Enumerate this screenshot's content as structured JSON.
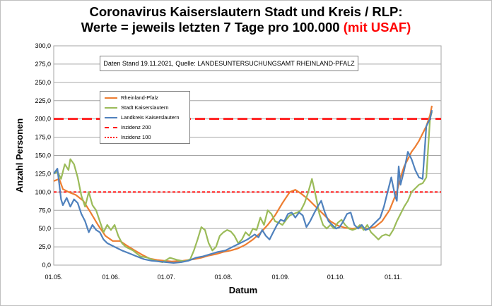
{
  "chart_data": {
    "type": "line",
    "title_line1": "Coronavirus Kaiserslautern Stadt und Kreis / RLP:",
    "title_line2": "Werte = jeweils letzten 7 Tage pro 100.000",
    "title_suffix": "(mit USAF)",
    "annotation": "Daten Stand 19.11.2021, Quelle: LANDESUNTERSUCHUNGSAMT RHEINLAND-PFALZ",
    "xlabel": "Datum",
    "ylabel": "Anzahl Personen",
    "ylim": [
      0,
      300
    ],
    "xlim_days": [
      0,
      210
    ],
    "y_ticks": [
      {
        "v": 0,
        "label": "0,0"
      },
      {
        "v": 25,
        "label": "25,0"
      },
      {
        "v": 50,
        "label": "50,0"
      },
      {
        "v": 75,
        "label": "75,0"
      },
      {
        "v": 100,
        "label": "100,0"
      },
      {
        "v": 125,
        "label": "125,0"
      },
      {
        "v": 150,
        "label": "150,0"
      },
      {
        "v": 175,
        "label": "175,0"
      },
      {
        "v": 200,
        "label": "200,0"
      },
      {
        "v": 225,
        "label": "225,0"
      },
      {
        "v": 250,
        "label": "250,0"
      },
      {
        "v": 275,
        "label": "275,0"
      },
      {
        "v": 300,
        "label": "300,0"
      }
    ],
    "x_ticks": [
      {
        "day": 0,
        "label": "01.05."
      },
      {
        "day": 31,
        "label": "01.06."
      },
      {
        "day": 61,
        "label": "01.07."
      },
      {
        "day": 92,
        "label": "01.08."
      },
      {
        "day": 123,
        "label": "01.09."
      },
      {
        "day": 153,
        "label": "01.10."
      },
      {
        "day": 184,
        "label": "01.11."
      }
    ],
    "grid": true,
    "legend_position": "upper-left",
    "series": [
      {
        "name": "Rheinland-Pfalz",
        "color": "#ed7d31",
        "points": [
          [
            0,
            115
          ],
          [
            3,
            118
          ],
          [
            5,
            104
          ],
          [
            8,
            100
          ],
          [
            12,
            96
          ],
          [
            16,
            88
          ],
          [
            20,
            72
          ],
          [
            24,
            55
          ],
          [
            28,
            40
          ],
          [
            32,
            33
          ],
          [
            36,
            33
          ],
          [
            40,
            26
          ],
          [
            44,
            20
          ],
          [
            48,
            14
          ],
          [
            52,
            9
          ],
          [
            56,
            7
          ],
          [
            60,
            6
          ],
          [
            64,
            5
          ],
          [
            70,
            6
          ],
          [
            76,
            8
          ],
          [
            80,
            10
          ],
          [
            84,
            13
          ],
          [
            88,
            15
          ],
          [
            92,
            18
          ],
          [
            96,
            20
          ],
          [
            100,
            23
          ],
          [
            104,
            28
          ],
          [
            108,
            35
          ],
          [
            112,
            44
          ],
          [
            116,
            55
          ],
          [
            120,
            68
          ],
          [
            124,
            85
          ],
          [
            128,
            100
          ],
          [
            131,
            103
          ],
          [
            134,
            98
          ],
          [
            138,
            90
          ],
          [
            142,
            80
          ],
          [
            146,
            70
          ],
          [
            150,
            60
          ],
          [
            154,
            54
          ],
          [
            158,
            51
          ],
          [
            162,
            50
          ],
          [
            166,
            51
          ],
          [
            170,
            50
          ],
          [
            174,
            52
          ],
          [
            178,
            60
          ],
          [
            182,
            75
          ],
          [
            186,
            100
          ],
          [
            188,
            120
          ],
          [
            190,
            135
          ],
          [
            192,
            145
          ],
          [
            194,
            155
          ],
          [
            196,
            162
          ],
          [
            198,
            170
          ],
          [
            200,
            180
          ],
          [
            202,
            190
          ],
          [
            204,
            205
          ],
          [
            205,
            218
          ]
        ]
      },
      {
        "name": "Stadt Kaiserslautern",
        "color": "#9bbb59",
        "points": [
          [
            0,
            125
          ],
          [
            2,
            128
          ],
          [
            4,
            118
          ],
          [
            6,
            138
          ],
          [
            8,
            130
          ],
          [
            9,
            145
          ],
          [
            11,
            138
          ],
          [
            13,
            120
          ],
          [
            15,
            95
          ],
          [
            17,
            80
          ],
          [
            19,
            100
          ],
          [
            21,
            82
          ],
          [
            23,
            75
          ],
          [
            25,
            60
          ],
          [
            27,
            45
          ],
          [
            29,
            55
          ],
          [
            31,
            48
          ],
          [
            33,
            55
          ],
          [
            35,
            40
          ],
          [
            37,
            30
          ],
          [
            39,
            25
          ],
          [
            43,
            20
          ],
          [
            47,
            12
          ],
          [
            51,
            10
          ],
          [
            55,
            6
          ],
          [
            59,
            4
          ],
          [
            63,
            10
          ],
          [
            67,
            7
          ],
          [
            71,
            5
          ],
          [
            74,
            8
          ],
          [
            76,
            20
          ],
          [
            78,
            35
          ],
          [
            80,
            52
          ],
          [
            82,
            48
          ],
          [
            84,
            30
          ],
          [
            86,
            20
          ],
          [
            88,
            25
          ],
          [
            90,
            40
          ],
          [
            92,
            45
          ],
          [
            94,
            48
          ],
          [
            96,
            46
          ],
          [
            98,
            40
          ],
          [
            100,
            30
          ],
          [
            102,
            35
          ],
          [
            104,
            45
          ],
          [
            106,
            40
          ],
          [
            108,
            50
          ],
          [
            110,
            48
          ],
          [
            112,
            65
          ],
          [
            114,
            55
          ],
          [
            116,
            75
          ],
          [
            118,
            70
          ],
          [
            120,
            60
          ],
          [
            122,
            58
          ],
          [
            124,
            55
          ],
          [
            126,
            62
          ],
          [
            128,
            68
          ],
          [
            130,
            70
          ],
          [
            132,
            72
          ],
          [
            134,
            75
          ],
          [
            136,
            85
          ],
          [
            138,
            100
          ],
          [
            140,
            118
          ],
          [
            142,
            95
          ],
          [
            144,
            70
          ],
          [
            146,
            55
          ],
          [
            148,
            50
          ],
          [
            150,
            55
          ],
          [
            152,
            50
          ],
          [
            154,
            58
          ],
          [
            156,
            62
          ],
          [
            158,
            55
          ],
          [
            160,
            50
          ],
          [
            162,
            48
          ],
          [
            164,
            50
          ],
          [
            166,
            55
          ],
          [
            168,
            48
          ],
          [
            170,
            55
          ],
          [
            172,
            45
          ],
          [
            174,
            40
          ],
          [
            176,
            35
          ],
          [
            178,
            40
          ],
          [
            180,
            42
          ],
          [
            182,
            40
          ],
          [
            184,
            48
          ],
          [
            186,
            60
          ],
          [
            188,
            70
          ],
          [
            190,
            80
          ],
          [
            192,
            88
          ],
          [
            194,
            100
          ],
          [
            196,
            105
          ],
          [
            198,
            110
          ],
          [
            200,
            112
          ],
          [
            202,
            120
          ],
          [
            204,
            200
          ],
          [
            205,
            210
          ]
        ]
      },
      {
        "name": "Landkreis Kaiserslautern",
        "color": "#4f81bd",
        "points": [
          [
            0,
            125
          ],
          [
            2,
            132
          ],
          [
            4,
            90
          ],
          [
            5,
            82
          ],
          [
            7,
            92
          ],
          [
            9,
            80
          ],
          [
            11,
            90
          ],
          [
            13,
            85
          ],
          [
            15,
            70
          ],
          [
            17,
            60
          ],
          [
            19,
            45
          ],
          [
            21,
            55
          ],
          [
            23,
            48
          ],
          [
            25,
            45
          ],
          [
            27,
            35
          ],
          [
            29,
            30
          ],
          [
            33,
            25
          ],
          [
            37,
            20
          ],
          [
            41,
            16
          ],
          [
            45,
            12
          ],
          [
            49,
            8
          ],
          [
            53,
            6
          ],
          [
            57,
            5
          ],
          [
            61,
            4
          ],
          [
            65,
            3
          ],
          [
            69,
            4
          ],
          [
            73,
            6
          ],
          [
            77,
            10
          ],
          [
            81,
            12
          ],
          [
            85,
            15
          ],
          [
            89,
            18
          ],
          [
            93,
            20
          ],
          [
            97,
            25
          ],
          [
            101,
            30
          ],
          [
            105,
            35
          ],
          [
            109,
            42
          ],
          [
            111,
            38
          ],
          [
            113,
            48
          ],
          [
            115,
            40
          ],
          [
            117,
            35
          ],
          [
            119,
            45
          ],
          [
            121,
            55
          ],
          [
            123,
            62
          ],
          [
            125,
            60
          ],
          [
            127,
            70
          ],
          [
            129,
            72
          ],
          [
            131,
            65
          ],
          [
            133,
            72
          ],
          [
            135,
            68
          ],
          [
            137,
            52
          ],
          [
            139,
            60
          ],
          [
            141,
            70
          ],
          [
            143,
            80
          ],
          [
            145,
            88
          ],
          [
            147,
            72
          ],
          [
            149,
            60
          ],
          [
            151,
            55
          ],
          [
            153,
            50
          ],
          [
            155,
            52
          ],
          [
            157,
            60
          ],
          [
            159,
            70
          ],
          [
            161,
            72
          ],
          [
            163,
            55
          ],
          [
            165,
            50
          ],
          [
            167,
            55
          ],
          [
            169,
            48
          ],
          [
            171,
            50
          ],
          [
            173,
            55
          ],
          [
            175,
            60
          ],
          [
            177,
            65
          ],
          [
            179,
            80
          ],
          [
            181,
            100
          ],
          [
            183,
            120
          ],
          [
            185,
            95
          ],
          [
            186,
            88
          ],
          [
            187,
            135
          ],
          [
            188,
            110
          ],
          [
            190,
            130
          ],
          [
            192,
            155
          ],
          [
            194,
            145
          ],
          [
            196,
            130
          ],
          [
            198,
            120
          ],
          [
            200,
            118
          ],
          [
            202,
            190
          ],
          [
            204,
            200
          ],
          [
            205,
            212
          ]
        ]
      }
    ],
    "reference_lines": [
      {
        "name": "Inzidenz 200",
        "value": 200,
        "color": "#ff0000"
      },
      {
        "name": "Inzidenz 100",
        "value": 100,
        "color": "#ff0000"
      }
    ]
  }
}
